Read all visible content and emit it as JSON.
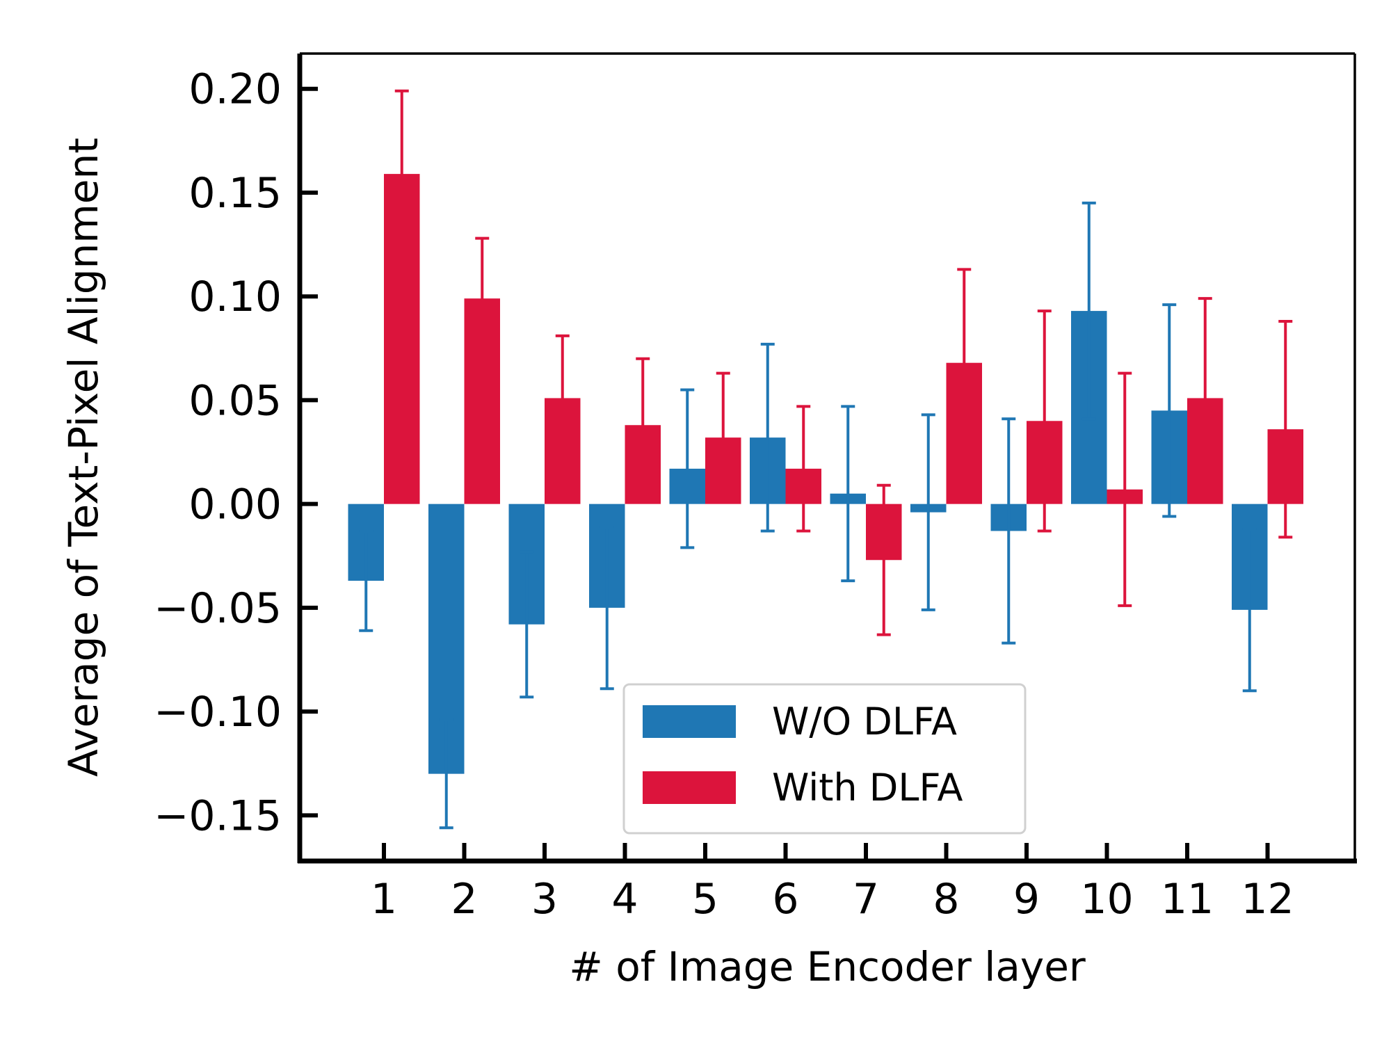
{
  "chart_data": {
    "type": "bar",
    "title": "",
    "xlabel": "# of Image Encoder layer",
    "ylabel": "Average of Text-Pixel Alignment",
    "categories": [
      "1",
      "2",
      "3",
      "4",
      "5",
      "6",
      "7",
      "8",
      "9",
      "10",
      "11",
      "12"
    ],
    "ylim": [
      -0.172,
      0.217
    ],
    "yticks": [
      -0.15,
      -0.1,
      -0.05,
      0.0,
      0.05,
      0.1,
      0.15,
      0.2
    ],
    "ytick_labels": [
      "−0.15",
      "−0.10",
      "−0.05",
      "0.00",
      "0.05",
      "0.10",
      "0.15",
      "0.20"
    ],
    "grid": false,
    "legend_position": "lower-center",
    "series": [
      {
        "name": "W/O DLFA",
        "color": "#1f77b4",
        "values": [
          -0.037,
          -0.13,
          -0.058,
          -0.05,
          0.017,
          0.032,
          0.005,
          -0.004,
          -0.013,
          0.093,
          0.045,
          -0.051
        ],
        "error": [
          0.024,
          0.026,
          0.035,
          0.039,
          0.038,
          0.045,
          0.042,
          0.047,
          0.054,
          0.052,
          0.051,
          0.039
        ]
      },
      {
        "name": "With DLFA",
        "color": "#dc143c",
        "values": [
          0.159,
          0.099,
          0.051,
          0.038,
          0.032,
          0.017,
          -0.027,
          0.068,
          0.04,
          0.007,
          0.051,
          0.036
        ],
        "error": [
          0.04,
          0.029,
          0.03,
          0.032,
          0.031,
          0.03,
          0.036,
          0.045,
          0.053,
          0.056,
          0.048,
          0.052
        ]
      }
    ]
  }
}
